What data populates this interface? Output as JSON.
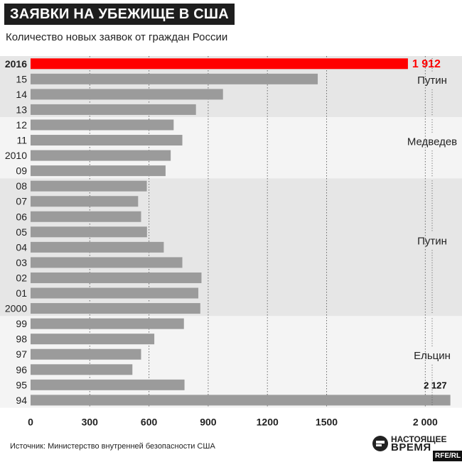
{
  "header": {
    "title": "ЗАЯВКИ НА УБЕЖИЩЕ В США",
    "subtitle": "Количество новых заявок от граждан России"
  },
  "footer": {
    "source": "Источник: Министерство внутренней безопасности США",
    "logo_line1": "НАСТОЯЩЕЕ",
    "logo_line2": "ВРЕМЯ",
    "rferl": "RFE/RL"
  },
  "colors": {
    "bar": "#9b9b9b",
    "highlight": "#ff0000",
    "band_dark": "#e6e6e6",
    "band_light": "#f4f4f4"
  },
  "chart_data": {
    "type": "bar",
    "orientation": "horizontal",
    "xlim": [
      0,
      2150
    ],
    "xticks": [
      0,
      300,
      600,
      900,
      1200,
      1500,
      2000
    ],
    "xtick_labels": [
      "0",
      "300",
      "600",
      "900",
      "1200",
      "1500",
      "2 000"
    ],
    "categories": [
      "2016",
      "15",
      "14",
      "13",
      "12",
      "11",
      "2010",
      "09",
      "08",
      "07",
      "06",
      "05",
      "04",
      "03",
      "02",
      "01",
      "2000",
      "99",
      "98",
      "97",
      "96",
      "95",
      "94"
    ],
    "values": [
      1912,
      1455,
      975,
      838,
      725,
      769,
      710,
      684,
      589,
      545,
      560,
      590,
      675,
      769,
      866,
      850,
      860,
      777,
      627,
      560,
      516,
      780,
      2127
    ],
    "highlight_index": 0,
    "value_labels": [
      {
        "index": 0,
        "text": "1 912"
      },
      {
        "index": 22,
        "text": "2 127"
      }
    ],
    "periods": [
      {
        "label": "Путин",
        "from": 0,
        "to": 3
      },
      {
        "label": "Медведев",
        "from": 4,
        "to": 7
      },
      {
        "label": "Путин",
        "from": 8,
        "to": 16
      },
      {
        "label": "Ельцин",
        "from": 17,
        "to": 22
      }
    ]
  }
}
